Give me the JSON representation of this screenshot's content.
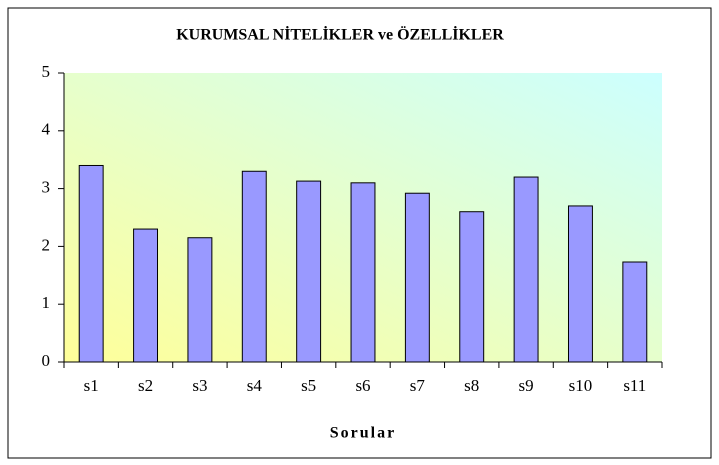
{
  "chart_data": {
    "type": "bar",
    "title": "KURUMSAL NİTELİKLER ve ÖZELLİKLER",
    "x_label": "Sorular",
    "categories": [
      "s1",
      "s2",
      "s3",
      "s4",
      "s5",
      "s6",
      "s7",
      "s8",
      "s9",
      "s10",
      "s11"
    ],
    "values": [
      3.4,
      2.3,
      2.15,
      3.3,
      3.13,
      3.1,
      2.92,
      2.6,
      3.2,
      2.7,
      1.73
    ],
    "color": "#9999ff",
    "ylim": [
      0,
      5
    ],
    "yticks": [
      0,
      1,
      2,
      3,
      4,
      5
    ],
    "grid": false
  }
}
